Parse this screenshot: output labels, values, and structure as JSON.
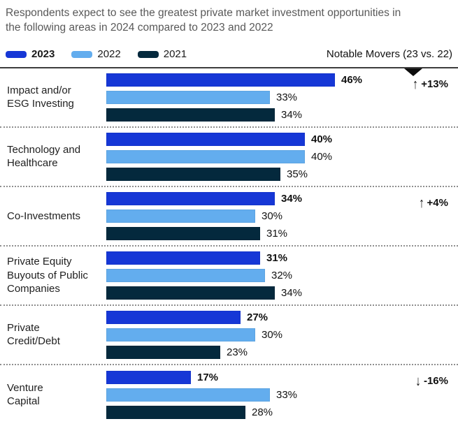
{
  "title": "Respondents expect to see the greatest private market investment opportunities in the following areas in 2024 compared to 2023 and 2022",
  "notable_movers_header": "Notable Movers (23 vs. 22)",
  "legend": [
    {
      "label": "2023",
      "color": "#1637d6",
      "bold": true
    },
    {
      "label": "2022",
      "color": "#63adee",
      "bold": false
    },
    {
      "label": "2021",
      "color": "#04293d",
      "bold": false
    }
  ],
  "icons": {
    "up-arrow-icon": "↑",
    "down-arrow-icon": "↓",
    "notable-movers-pointer-icon": "down-triangle"
  },
  "colors": {
    "series_2023": "#1637d6",
    "series_2022": "#63adee",
    "series_2021": "#04293d",
    "title_text": "#595959",
    "body_text": "#111111",
    "top_rule": "#3d3d3d",
    "dotted_separator": "#8f8f8f"
  },
  "chart_data": {
    "type": "bar",
    "orientation": "horizontal",
    "title": "Respondents expect to see the greatest private market investment opportunities in the following areas in 2024 compared to 2023 and 2022",
    "xlabel": "",
    "ylabel": "",
    "xlim": [
      0,
      50
    ],
    "grid": false,
    "legend_position": "top-left",
    "value_label_format": "percent",
    "categories": [
      [
        "Impact and/or",
        "ESG Investing"
      ],
      [
        "Technology and",
        "Healthcare"
      ],
      [
        "Co-Investments"
      ],
      [
        "Private Equity",
        "Buyouts of Public",
        "Companies"
      ],
      [
        "Private",
        "Credit/Debt"
      ],
      [
        "Venture",
        "Capital"
      ]
    ],
    "series": [
      {
        "name": "2023",
        "color": "#1637d6",
        "bold_labels": true,
        "values": [
          46,
          40,
          34,
          31,
          27,
          17
        ]
      },
      {
        "name": "2022",
        "color": "#63adee",
        "bold_labels": false,
        "values": [
          33,
          40,
          30,
          32,
          30,
          33
        ]
      },
      {
        "name": "2021",
        "color": "#04293d",
        "bold_labels": false,
        "values": [
          34,
          35,
          31,
          34,
          23,
          28
        ]
      }
    ],
    "movers": [
      {
        "row": 0,
        "direction": "up",
        "label": "+13%"
      },
      {
        "row": 2,
        "direction": "up",
        "label": "+4%"
      },
      {
        "row": 5,
        "direction": "down",
        "label": "-16%"
      }
    ]
  }
}
